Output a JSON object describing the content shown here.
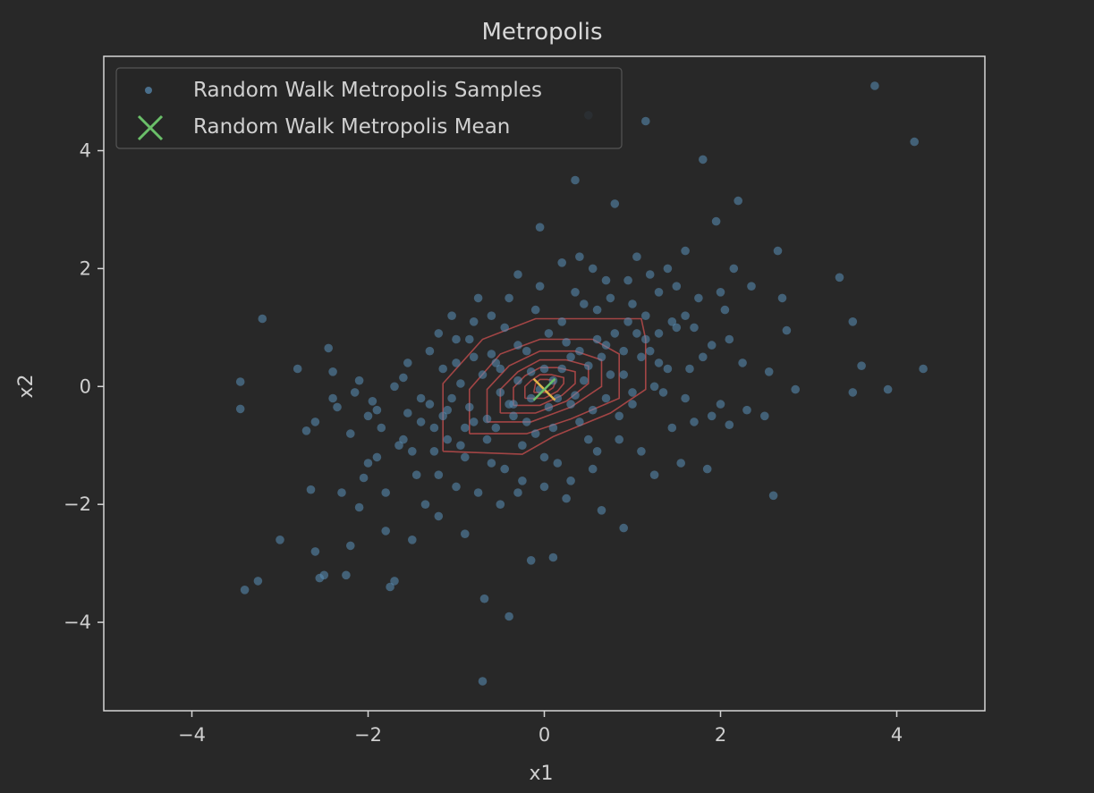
{
  "chart_data": {
    "type": "scatter",
    "title": "Metropolis",
    "xlabel": "x1",
    "ylabel": "x2",
    "xlim": [
      -5,
      5
    ],
    "ylim": [
      -5.5,
      5.6
    ],
    "xticks": [
      -4,
      -2,
      0,
      2,
      4
    ],
    "yticks": [
      -4,
      -2,
      0,
      2,
      4
    ],
    "xtick_labels": [
      "−4",
      "−2",
      "0",
      "2",
      "4"
    ],
    "ytick_labels": [
      "−4",
      "−2",
      "0",
      "2",
      "4"
    ],
    "grid": false,
    "legend_position": "top-left",
    "series": [
      {
        "name": "Random Walk Metropolis Samples",
        "kind": "scatter",
        "color": "#5a8fb8",
        "points": [
          [
            -3.45,
            0.08
          ],
          [
            -3.45,
            -0.38
          ],
          [
            -3.4,
            -3.45
          ],
          [
            -3.2,
            1.15
          ],
          [
            -3.25,
            -3.3
          ],
          [
            -3.0,
            -2.6
          ],
          [
            -2.8,
            0.3
          ],
          [
            -2.7,
            -0.75
          ],
          [
            -2.65,
            -1.75
          ],
          [
            -2.6,
            -0.6
          ],
          [
            -2.6,
            -2.8
          ],
          [
            -2.55,
            -3.25
          ],
          [
            -2.5,
            -3.2
          ],
          [
            -2.45,
            0.65
          ],
          [
            -2.4,
            0.25
          ],
          [
            -2.35,
            -0.35
          ],
          [
            -2.3,
            -1.8
          ],
          [
            -2.25,
            -3.2
          ],
          [
            -2.2,
            -2.7
          ],
          [
            -2.15,
            -0.1
          ],
          [
            -2.1,
            -2.05
          ],
          [
            -2.05,
            -1.55
          ],
          [
            -2.0,
            -0.5
          ],
          [
            -1.95,
            -0.25
          ],
          [
            -1.9,
            -1.2
          ],
          [
            -1.85,
            -0.7
          ],
          [
            -1.8,
            -2.45
          ],
          [
            -1.75,
            -3.4
          ],
          [
            -1.7,
            -3.3
          ],
          [
            -1.65,
            -1.0
          ],
          [
            -1.6,
            0.15
          ],
          [
            -1.55,
            -0.45
          ],
          [
            -1.5,
            -2.6
          ],
          [
            -1.45,
            -1.5
          ],
          [
            -1.4,
            -0.2
          ],
          [
            -1.35,
            -2.0
          ],
          [
            -1.3,
            0.6
          ],
          [
            -1.25,
            -1.1
          ],
          [
            -1.2,
            -2.2
          ],
          [
            -1.15,
            0.3
          ],
          [
            -1.1,
            -0.9
          ],
          [
            -1.05,
            1.2
          ],
          [
            -1.0,
            -1.7
          ],
          [
            -0.95,
            0.05
          ],
          [
            -0.9,
            -2.5
          ],
          [
            -0.85,
            0.8
          ],
          [
            -0.8,
            -0.6
          ],
          [
            -0.75,
            1.5
          ],
          [
            -0.7,
            -5.0
          ],
          [
            -0.68,
            -3.6
          ],
          [
            -0.6,
            -1.3
          ],
          [
            -0.55,
            0.4
          ],
          [
            -0.5,
            -2.0
          ],
          [
            -0.45,
            1.0
          ],
          [
            -0.4,
            -3.9
          ],
          [
            -0.35,
            -0.3
          ],
          [
            -0.3,
            1.9
          ],
          [
            -0.25,
            -1.6
          ],
          [
            -0.2,
            0.6
          ],
          [
            -0.15,
            -2.95
          ],
          [
            -0.1,
            -0.8
          ],
          [
            -0.05,
            2.7
          ],
          [
            0.0,
            -1.2
          ],
          [
            0.05,
            0.9
          ],
          [
            0.1,
            -2.9
          ],
          [
            0.15,
            -0.2
          ],
          [
            0.2,
            2.1
          ],
          [
            0.25,
            -1.9
          ],
          [
            0.3,
            0.5
          ],
          [
            0.35,
            3.5
          ],
          [
            0.4,
            -0.6
          ],
          [
            0.45,
            1.4
          ],
          [
            0.5,
            4.6
          ],
          [
            0.55,
            -1.4
          ],
          [
            0.6,
            0.8
          ],
          [
            0.65,
            -2.1
          ],
          [
            0.7,
            1.8
          ],
          [
            0.75,
            0.2
          ],
          [
            0.8,
            3.1
          ],
          [
            0.85,
            -0.9
          ],
          [
            0.9,
            -2.4
          ],
          [
            0.95,
            1.1
          ],
          [
            1.0,
            -0.3
          ],
          [
            1.05,
            2.2
          ],
          [
            1.1,
            -1.1
          ],
          [
            1.15,
            4.5
          ],
          [
            1.2,
            0.6
          ],
          [
            1.25,
            -1.5
          ],
          [
            1.3,
            1.6
          ],
          [
            1.35,
            -0.1
          ],
          [
            1.4,
            2.0
          ],
          [
            1.45,
            -0.7
          ],
          [
            1.5,
            1.0
          ],
          [
            1.55,
            -1.3
          ],
          [
            1.6,
            2.3
          ],
          [
            1.65,
            0.3
          ],
          [
            1.7,
            -0.6
          ],
          [
            1.75,
            1.5
          ],
          [
            1.8,
            3.85
          ],
          [
            1.85,
            -1.4
          ],
          [
            1.9,
            0.7
          ],
          [
            1.95,
            2.8
          ],
          [
            2.0,
            -0.3
          ],
          [
            2.05,
            1.3
          ],
          [
            2.1,
            -0.65
          ],
          [
            2.15,
            2.0
          ],
          [
            2.2,
            3.15
          ],
          [
            2.25,
            0.4
          ],
          [
            2.3,
            -0.4
          ],
          [
            2.35,
            1.7
          ],
          [
            2.5,
            -0.5
          ],
          [
            2.55,
            0.25
          ],
          [
            2.6,
            -1.85
          ],
          [
            2.65,
            2.3
          ],
          [
            2.7,
            1.5
          ],
          [
            2.75,
            0.95
          ],
          [
            2.85,
            -0.05
          ],
          [
            3.35,
            1.85
          ],
          [
            3.5,
            1.1
          ],
          [
            3.5,
            -0.1
          ],
          [
            3.6,
            0.35
          ],
          [
            3.75,
            5.1
          ],
          [
            3.9,
            -0.05
          ],
          [
            4.2,
            4.15
          ],
          [
            4.3,
            0.3
          ],
          [
            -1.9,
            -0.4
          ],
          [
            -1.6,
            -0.9
          ],
          [
            -1.3,
            -0.3
          ],
          [
            -1.2,
            -1.5
          ],
          [
            -1.0,
            0.4
          ],
          [
            -0.9,
            -1.2
          ],
          [
            -0.7,
            0.2
          ],
          [
            -0.65,
            -0.9
          ],
          [
            -0.5,
            -0.1
          ],
          [
            -0.45,
            -1.4
          ],
          [
            -0.3,
            0.7
          ],
          [
            -0.2,
            -0.6
          ],
          [
            -0.1,
            1.3
          ],
          [
            0.0,
            0.3
          ],
          [
            0.1,
            -0.7
          ],
          [
            0.2,
            1.1
          ],
          [
            0.3,
            -0.3
          ],
          [
            0.4,
            0.6
          ],
          [
            0.5,
            -0.9
          ],
          [
            0.6,
            1.3
          ],
          [
            0.7,
            -0.2
          ],
          [
            0.8,
            0.9
          ],
          [
            0.9,
            0.2
          ],
          [
            1.0,
            1.4
          ],
          [
            1.1,
            0.5
          ],
          [
            1.2,
            1.9
          ],
          [
            1.3,
            0.9
          ],
          [
            1.4,
            0.3
          ],
          [
            1.5,
            1.7
          ],
          [
            1.6,
            1.2
          ],
          [
            -1.7,
            0.0
          ],
          [
            -1.4,
            -0.6
          ],
          [
            -1.1,
            -0.4
          ],
          [
            -0.85,
            -0.35
          ],
          [
            -0.6,
            0.55
          ],
          [
            -0.35,
            -0.5
          ],
          [
            -0.15,
            0.25
          ],
          [
            0.05,
            -0.35
          ],
          [
            0.25,
            0.75
          ],
          [
            0.45,
            0.1
          ],
          [
            0.65,
            0.5
          ],
          [
            0.85,
            -0.5
          ],
          [
            1.05,
            0.9
          ],
          [
            1.25,
            0.0
          ],
          [
            1.45,
            1.1
          ],
          [
            -2.2,
            -0.8
          ],
          [
            -2.0,
            -1.3
          ],
          [
            -1.8,
            -1.8
          ],
          [
            -1.5,
            -1.1
          ],
          [
            -1.25,
            -0.7
          ],
          [
            -0.95,
            -1.0
          ],
          [
            -0.75,
            -1.8
          ],
          [
            -0.55,
            -0.7
          ],
          [
            -0.25,
            -1.0
          ],
          [
            0.15,
            -1.3
          ],
          [
            0.35,
            1.6
          ],
          [
            0.55,
            2.0
          ],
          [
            0.75,
            1.5
          ],
          [
            0.95,
            1.8
          ],
          [
            1.15,
            1.2
          ],
          [
            -1.2,
            0.9
          ],
          [
            -0.8,
            1.1
          ],
          [
            -0.4,
            1.5
          ],
          [
            -0.05,
            1.7
          ],
          [
            0.4,
            2.2
          ],
          [
            -0.3,
            -1.8
          ],
          [
            0.0,
            -1.7
          ],
          [
            0.3,
            -1.6
          ],
          [
            0.6,
            -1.1
          ],
          [
            1.7,
            1.0
          ],
          [
            2.0,
            1.6
          ],
          [
            2.1,
            0.8
          ],
          [
            1.8,
            0.5
          ],
          [
            1.6,
            -0.2
          ],
          [
            1.9,
            -0.5
          ],
          [
            -2.4,
            -0.2
          ],
          [
            -2.1,
            0.1
          ],
          [
            -1.55,
            0.4
          ],
          [
            -1.0,
            0.8
          ],
          [
            -0.6,
            1.2
          ],
          [
            -0.05,
            -0.05
          ],
          [
            0.1,
            0.1
          ],
          [
            -0.15,
            -0.2
          ],
          [
            0.2,
            0.3
          ],
          [
            -0.3,
            0.1
          ],
          [
            0.35,
            -0.15
          ],
          [
            -0.4,
            -0.3
          ],
          [
            0.5,
            0.35
          ],
          [
            -0.5,
            0.3
          ],
          [
            0.55,
            -0.4
          ],
          [
            -0.65,
            -0.55
          ],
          [
            0.7,
            0.7
          ],
          [
            -0.8,
            0.5
          ],
          [
            0.9,
            0.6
          ],
          [
            -0.9,
            -0.7
          ],
          [
            1.0,
            -0.1
          ],
          [
            -1.05,
            -0.2
          ],
          [
            1.15,
            0.8
          ],
          [
            -1.15,
            -0.5
          ],
          [
            1.3,
            0.4
          ]
        ]
      },
      {
        "name": "Random Walk Metropolis Mean",
        "kind": "marker",
        "color": "#6abf69",
        "points": [
          [
            0.0,
            -0.05
          ]
        ]
      }
    ],
    "contour": {
      "color": "#b84a4a",
      "levels": [
        [
          [
            -1.15,
            -1.1
          ],
          [
            -0.25,
            -1.15
          ],
          [
            0.1,
            -0.85
          ],
          [
            0.75,
            -0.45
          ],
          [
            1.15,
            -0.05
          ],
          [
            1.15,
            0.8
          ],
          [
            1.1,
            1.15
          ],
          [
            0.25,
            1.15
          ],
          [
            -0.1,
            1.15
          ],
          [
            -0.7,
            0.8
          ],
          [
            -1.15,
            0.05
          ],
          [
            -1.15,
            -1.1
          ]
        ],
        [
          [
            -0.85,
            -0.8
          ],
          [
            -0.2,
            -0.8
          ],
          [
            0.3,
            -0.55
          ],
          [
            0.85,
            -0.2
          ],
          [
            0.85,
            0.55
          ],
          [
            0.55,
            0.8
          ],
          [
            -0.05,
            0.8
          ],
          [
            -0.5,
            0.55
          ],
          [
            -0.85,
            -0.05
          ],
          [
            -0.85,
            -0.8
          ]
        ],
        [
          [
            -0.65,
            -0.6
          ],
          [
            -0.15,
            -0.6
          ],
          [
            0.3,
            -0.35
          ],
          [
            0.65,
            0.0
          ],
          [
            0.65,
            0.45
          ],
          [
            0.35,
            0.6
          ],
          [
            -0.05,
            0.6
          ],
          [
            -0.4,
            0.35
          ],
          [
            -0.65,
            -0.05
          ],
          [
            -0.65,
            -0.6
          ]
        ],
        [
          [
            -0.5,
            -0.45
          ],
          [
            -0.1,
            -0.45
          ],
          [
            0.25,
            -0.25
          ],
          [
            0.5,
            0.05
          ],
          [
            0.5,
            0.35
          ],
          [
            0.25,
            0.45
          ],
          [
            -0.05,
            0.45
          ],
          [
            -0.3,
            0.25
          ],
          [
            -0.5,
            -0.05
          ],
          [
            -0.5,
            -0.45
          ]
        ],
        [
          [
            -0.35,
            -0.32
          ],
          [
            -0.05,
            -0.32
          ],
          [
            0.2,
            -0.15
          ],
          [
            0.35,
            0.05
          ],
          [
            0.35,
            0.25
          ],
          [
            0.15,
            0.32
          ],
          [
            -0.05,
            0.32
          ],
          [
            -0.22,
            0.18
          ],
          [
            -0.35,
            -0.02
          ],
          [
            -0.35,
            -0.32
          ]
        ],
        [
          [
            -0.22,
            -0.2
          ],
          [
            0.0,
            -0.2
          ],
          [
            0.15,
            -0.08
          ],
          [
            0.22,
            0.05
          ],
          [
            0.22,
            0.15
          ],
          [
            0.08,
            0.2
          ],
          [
            -0.05,
            0.2
          ],
          [
            -0.15,
            0.1
          ],
          [
            -0.22,
            0.0
          ],
          [
            -0.22,
            -0.2
          ]
        ],
        [
          [
            -0.12,
            -0.1
          ],
          [
            0.02,
            -0.1
          ],
          [
            0.1,
            -0.02
          ],
          [
            0.12,
            0.05
          ],
          [
            0.12,
            0.1
          ],
          [
            0.03,
            0.12
          ],
          [
            -0.05,
            0.12
          ],
          [
            -0.1,
            0.05
          ],
          [
            -0.12,
            -0.1
          ]
        ]
      ]
    }
  }
}
